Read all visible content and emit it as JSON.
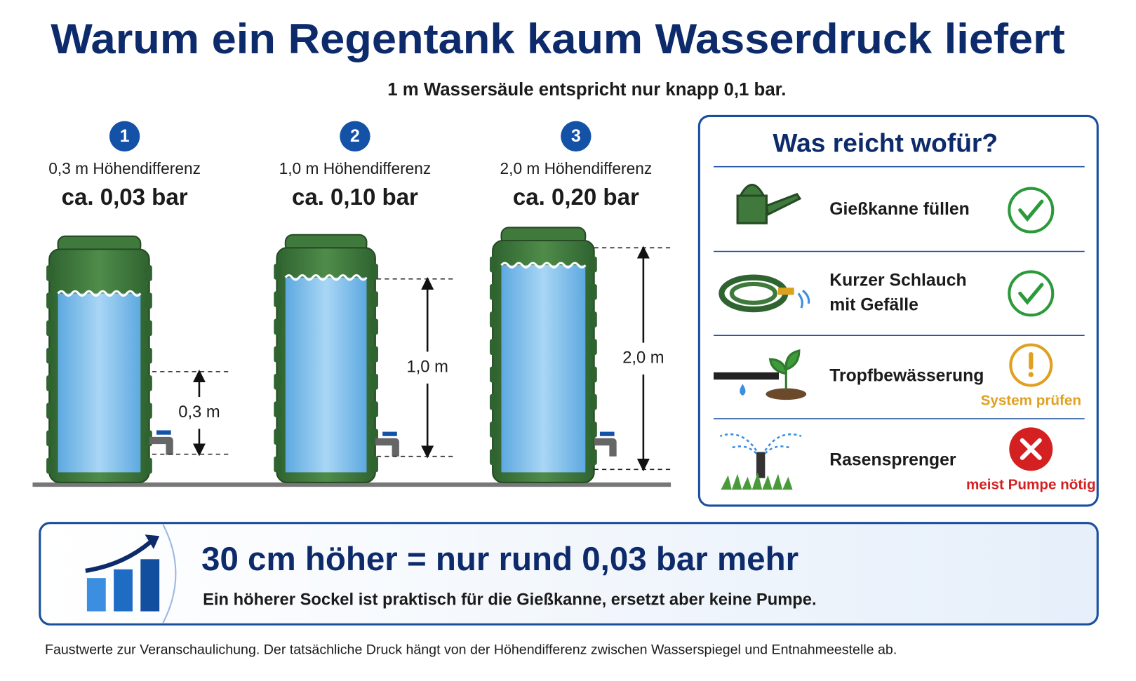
{
  "header": {
    "title": "Warum ein Regentank kaum Wasserdruck liefert",
    "subtitle": "1 m Wassersäule entspricht nur knapp 0,1 bar."
  },
  "tanks": [
    {
      "number": "1",
      "height_difference": "0,3 m Höhendifferenz",
      "pressure": "ca. 0,03 bar",
      "measure": "0,3 m"
    },
    {
      "number": "2",
      "height_difference": "1,0 m Höhendifferenz",
      "pressure": "ca. 0,10 bar",
      "measure": "1,0 m"
    },
    {
      "number": "3",
      "height_difference": "2,0 m Höhendifferenz",
      "pressure": "ca. 0,20 bar",
      "measure": "2,0 m"
    }
  ],
  "panel": {
    "title": "Was reicht wofür?",
    "items": [
      {
        "lines": [
          "Gießkanne füllen"
        ],
        "status": "ok"
      },
      {
        "lines": [
          "Kurzer Schlauch",
          "mit Gefälle"
        ],
        "status": "ok"
      },
      {
        "lines": [
          "Tropfbewässerung"
        ],
        "status": "warning",
        "note": "System prüfen"
      },
      {
        "lines": [
          "Rasensprenger"
        ],
        "status": "no",
        "note": "meist Pumpe nötig"
      }
    ]
  },
  "callout": {
    "headline": "30 cm höher = nur rund 0,03 bar mehr",
    "text": "Ein höherer Sockel ist praktisch für die Gießkanne, ersetzt aber keine Pumpe."
  },
  "footnote": "Faustwerte zur Veranschaulichung. Der tatsächliche Druck hängt von der Höhendifferenz zwischen Wasserspiegel und Entnahmeestelle ab."
}
